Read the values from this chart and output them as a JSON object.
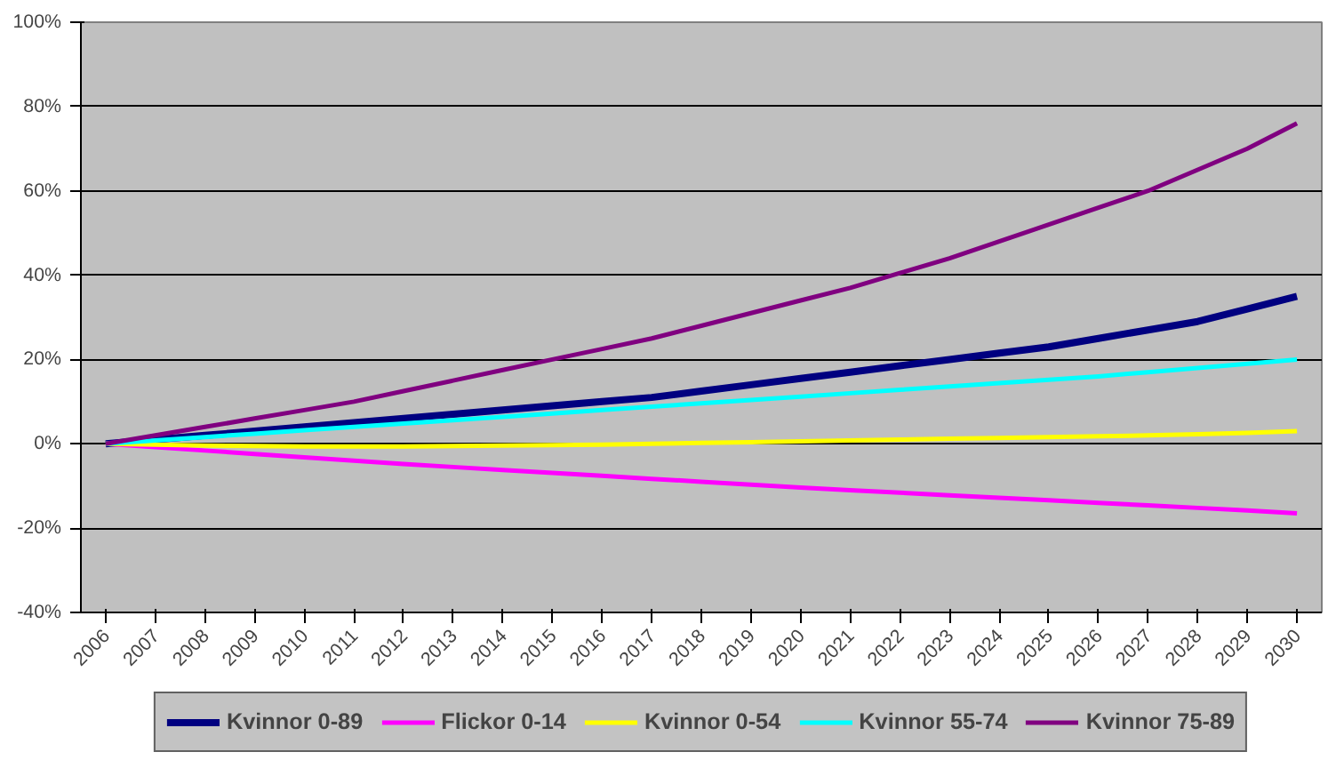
{
  "chart_data": {
    "type": "line",
    "categories": [
      "2006",
      "2007",
      "2008",
      "2009",
      "2010",
      "2011",
      "2012",
      "2013",
      "2014",
      "2015",
      "2016",
      "2017",
      "2018",
      "2019",
      "2020",
      "2021",
      "2022",
      "2023",
      "2024",
      "2025",
      "2026",
      "2027",
      "2028",
      "2029",
      "2030"
    ],
    "ylim": [
      -40,
      100
    ],
    "yticks": [
      {
        "value": -40,
        "label": "-40%"
      },
      {
        "value": -20,
        "label": "-20%"
      },
      {
        "value": 0,
        "label": "0%"
      },
      {
        "value": 20,
        "label": "20%"
      },
      {
        "value": 40,
        "label": "40%"
      },
      {
        "value": 60,
        "label": "60%"
      },
      {
        "value": 80,
        "label": "80%"
      },
      {
        "value": 100,
        "label": "100%"
      }
    ],
    "grid": "y",
    "legend": "bottom",
    "marker": "none",
    "line_style": "solid",
    "series": [
      {
        "name": "Kvinnor 0-89",
        "color": "#000080",
        "values": [
          0,
          1,
          2,
          3,
          4,
          5,
          6,
          7,
          8,
          9,
          10,
          11,
          12.5,
          14,
          15.5,
          17,
          18.5,
          20,
          21.5,
          23,
          25,
          27,
          29,
          32,
          35
        ]
      },
      {
        "name": "Flickor 0-14",
        "color": "#ff00ff",
        "values": [
          0,
          -0.8,
          -1.6,
          -2.4,
          -3.2,
          -4,
          -4.8,
          -5.5,
          -6.2,
          -6.9,
          -7.6,
          -8.3,
          -9,
          -9.7,
          -10.4,
          -11,
          -11.6,
          -12.2,
          -12.8,
          -13.4,
          -14,
          -14.6,
          -15.2,
          -15.8,
          -16.5
        ]
      },
      {
        "name": "Kvinnor 0-54",
        "color": "#ffff00",
        "values": [
          0,
          -0.2,
          -0.4,
          -0.5,
          -0.6,
          -0.6,
          -0.6,
          -0.5,
          -0.4,
          -0.3,
          -0.2,
          0,
          0.2,
          0.4,
          0.6,
          0.8,
          1,
          1.2,
          1.4,
          1.6,
          1.8,
          2,
          2.3,
          2.6,
          3
        ]
      },
      {
        "name": "Kvinnor 55-74",
        "color": "#00ffff",
        "values": [
          0,
          0.8,
          1.6,
          2.4,
          3.2,
          4,
          4.8,
          5.6,
          6.4,
          7.2,
          8,
          8.8,
          9.6,
          10.4,
          11.2,
          12,
          12.8,
          13.6,
          14.4,
          15.2,
          16,
          17,
          18,
          19,
          20
        ]
      },
      {
        "name": "Kvinnor 75-89",
        "color": "#800080",
        "values": [
          0,
          2,
          4,
          6,
          8,
          10,
          12.5,
          15,
          17.5,
          20,
          22.5,
          25,
          28,
          31,
          34,
          37,
          40.5,
          44,
          48,
          52,
          56,
          60,
          65,
          70,
          76
        ]
      }
    ]
  }
}
